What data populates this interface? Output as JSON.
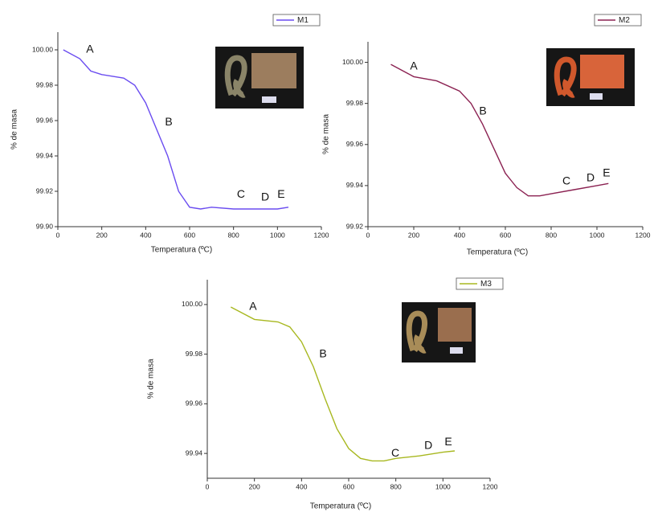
{
  "chart_data": [
    {
      "type": "line",
      "x_label": "Temperatura (ºC)",
      "y_label": "% de masa",
      "x": [
        25,
        100,
        150,
        200,
        300,
        350,
        400,
        450,
        500,
        550,
        600,
        650,
        700,
        800,
        900,
        1000,
        1050
      ],
      "series": [
        {
          "name": "M1",
          "color": "#6a4cf0",
          "values": [
            100.0,
            99.995,
            99.988,
            99.986,
            99.984,
            99.98,
            99.97,
            99.955,
            99.94,
            99.92,
            99.911,
            99.91,
            99.911,
            99.91,
            99.91,
            99.91,
            99.911
          ]
        }
      ],
      "xlim": [
        0,
        1200
      ],
      "xticks": [
        0,
        200,
        400,
        600,
        800,
        1000,
        1200
      ],
      "ylim": [
        99.9,
        100.01
      ],
      "yticks": [
        {
          "value": 99.9,
          "label": "99.90"
        },
        99.92,
        99.94,
        99.96,
        99.98,
        {
          "value": 100,
          "label": "100.00"
        }
      ],
      "annotations": [
        {
          "text": "A",
          "x": 146,
          "y": 100.0
        },
        {
          "text": "B",
          "x": 505,
          "y": 99.959
        },
        {
          "text": "C",
          "x": 834,
          "y": 99.918
        },
        {
          "text": "D",
          "x": 944,
          "y": 99.9165
        },
        {
          "text": "E",
          "x": 1017,
          "y": 99.918
        }
      ]
    },
    {
      "type": "line",
      "x_label": "Temperatura (ºC)",
      "y_label": "% de masa",
      "x": [
        100,
        200,
        300,
        400,
        450,
        500,
        550,
        600,
        650,
        700,
        750,
        800,
        900,
        1000,
        1050
      ],
      "series": [
        {
          "name": "M2",
          "color": "#8b2252",
          "values": [
            99.999,
            99.993,
            99.991,
            99.986,
            99.98,
            99.97,
            99.958,
            99.946,
            99.939,
            99.935,
            99.935,
            99.936,
            99.938,
            99.94,
            99.941
          ]
        }
      ],
      "xlim": [
        0,
        1200
      ],
      "xticks": [
        0,
        200,
        400,
        600,
        800,
        1000,
        1200
      ],
      "ylim": [
        99.92,
        100.01
      ],
      "yticks": [
        99.92,
        99.94,
        99.96,
        99.98,
        {
          "value": 100,
          "label": "100.00"
        }
      ],
      "annotations": [
        {
          "text": "A",
          "x": 200,
          "y": 99.998
        },
        {
          "text": "B",
          "x": 502,
          "y": 99.976
        },
        {
          "text": "C",
          "x": 867,
          "y": 99.942
        },
        {
          "text": "D",
          "x": 972,
          "y": 99.9435
        },
        {
          "text": "E",
          "x": 1042,
          "y": 99.946
        }
      ]
    },
    {
      "type": "line",
      "x_label": "Temperatura (ºC)",
      "y_label": "% de masa",
      "x": [
        100,
        200,
        300,
        350,
        400,
        450,
        500,
        550,
        600,
        650,
        700,
        750,
        800,
        900,
        1000,
        1050
      ],
      "series": [
        {
          "name": "M3",
          "color": "#a8b820",
          "values": [
            99.999,
            99.994,
            99.993,
            99.991,
            99.985,
            99.975,
            99.962,
            99.95,
            99.942,
            99.938,
            99.937,
            99.937,
            99.938,
            99.939,
            99.9405,
            99.941
          ]
        }
      ],
      "xlim": [
        0,
        1200
      ],
      "xticks": [
        0,
        200,
        400,
        600,
        800,
        1000,
        1200
      ],
      "ylim": [
        99.93,
        100.01
      ],
      "yticks": [
        99.94,
        99.96,
        99.98,
        {
          "value": 100,
          "label": "100.00"
        }
      ],
      "annotations": [
        {
          "text": "A",
          "x": 194,
          "y": 99.999
        },
        {
          "text": "B",
          "x": 491,
          "y": 99.98
        },
        {
          "text": "C",
          "x": 798,
          "y": 99.94
        },
        {
          "text": "D",
          "x": 938,
          "y": 99.943
        },
        {
          "text": "E",
          "x": 1023,
          "y": 99.9445
        }
      ]
    }
  ]
}
